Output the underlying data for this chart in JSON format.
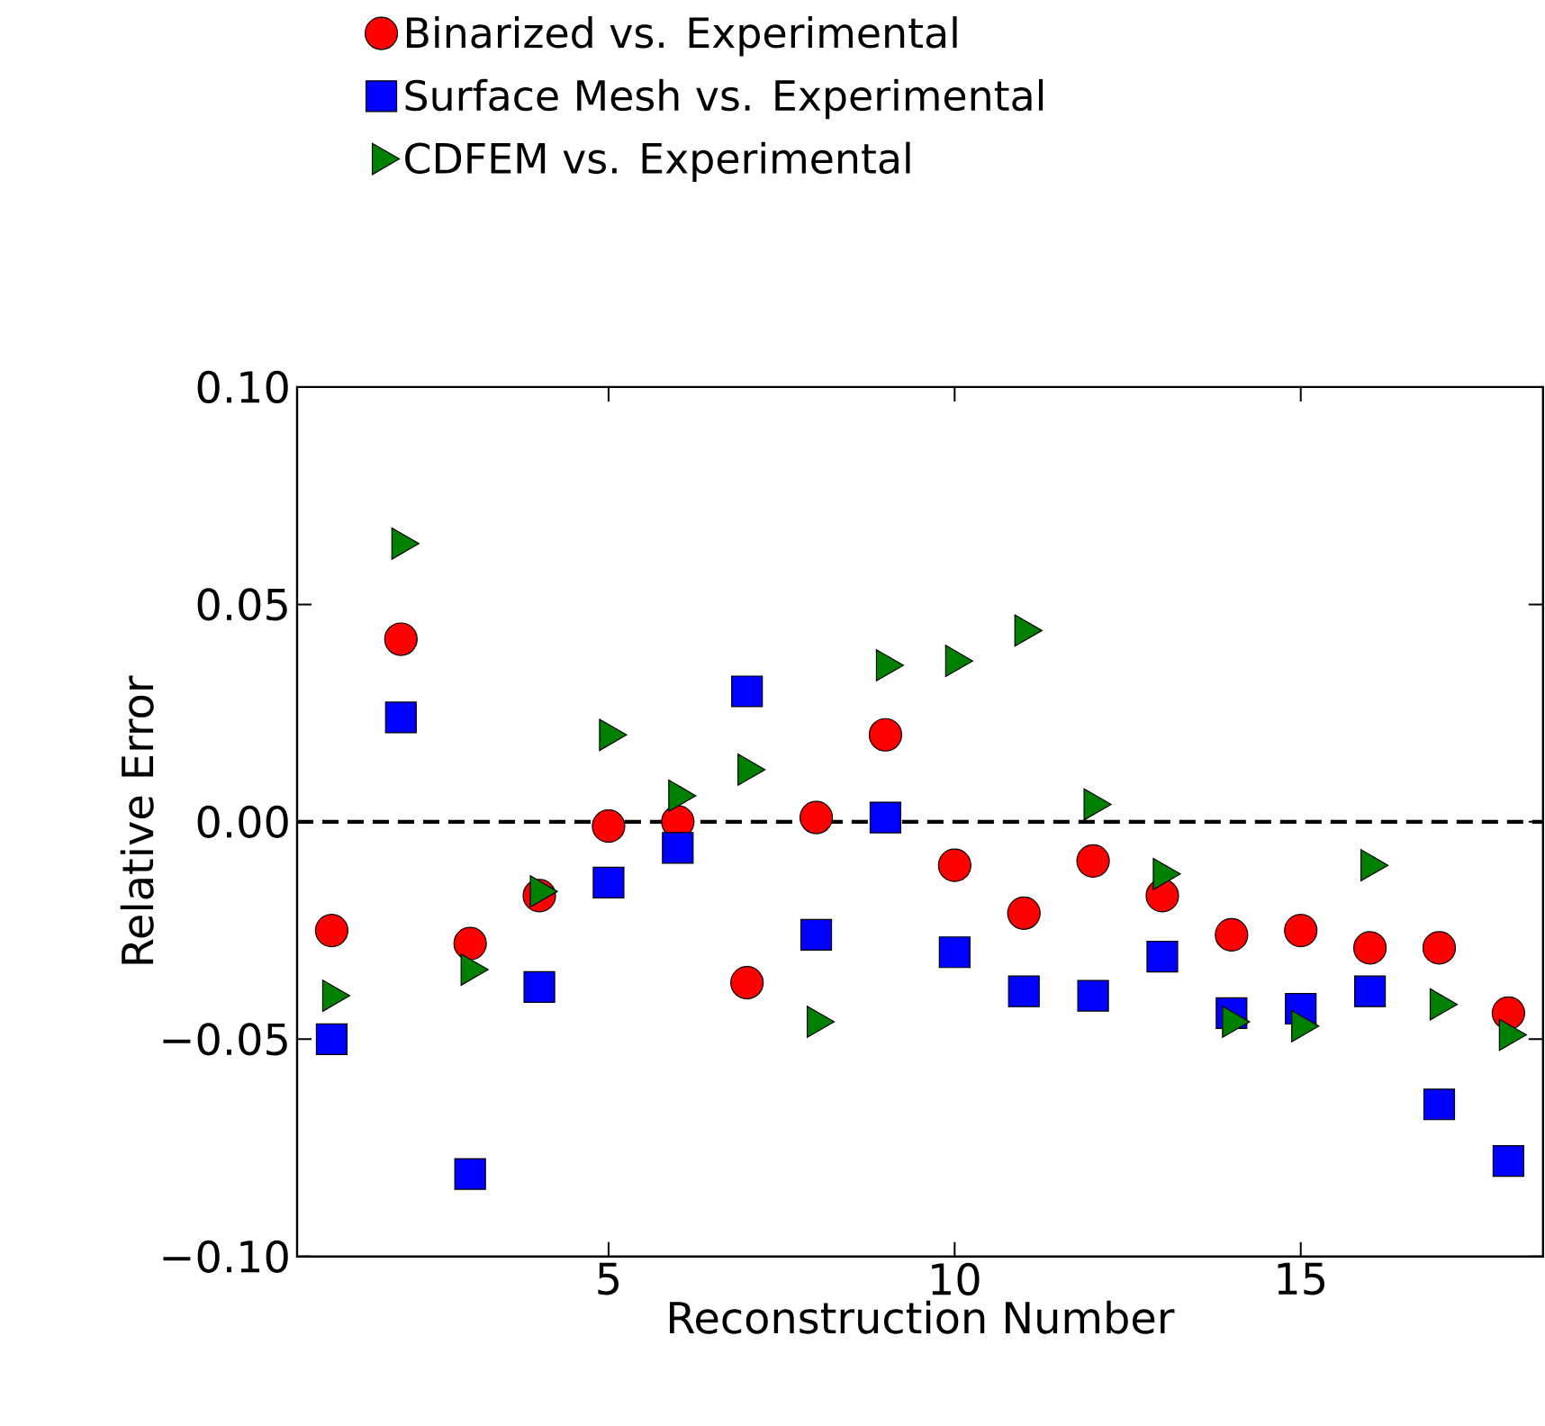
{
  "chart_data": {
    "type": "scatter",
    "xlabel": "Reconstruction Number",
    "ylabel": "Relative Error",
    "x": [
      1,
      2,
      3,
      4,
      5,
      6,
      7,
      8,
      9,
      10,
      11,
      12,
      13,
      14,
      15,
      16,
      17,
      18
    ],
    "series": [
      {
        "name": "Binarized vs. Experimental",
        "color": "#ff0000",
        "marker": "circle",
        "values": [
          -0.025,
          0.042,
          -0.028,
          -0.017,
          -0.001,
          0.0,
          -0.037,
          0.001,
          0.02,
          -0.01,
          -0.021,
          -0.009,
          -0.017,
          -0.026,
          -0.025,
          -0.029,
          -0.029,
          -0.044
        ]
      },
      {
        "name": "Surface Mesh vs. Experimental",
        "color": "#0000ff",
        "marker": "square",
        "values": [
          -0.05,
          0.024,
          -0.081,
          -0.038,
          -0.014,
          -0.006,
          0.03,
          -0.026,
          0.001,
          -0.03,
          -0.039,
          -0.04,
          -0.031,
          -0.044,
          -0.043,
          -0.039,
          -0.065,
          -0.078
        ]
      },
      {
        "name": "CDFEM vs. Experimental",
        "color": "#008000",
        "marker": "triangle",
        "values": [
          -0.04,
          0.064,
          -0.034,
          -0.016,
          0.02,
          0.006,
          0.012,
          -0.046,
          0.036,
          0.037,
          0.044,
          0.004,
          -0.012,
          -0.046,
          -0.047,
          -0.01,
          -0.042,
          -0.049
        ]
      }
    ],
    "xlim": [
      0.5,
      18.5
    ],
    "ylim": [
      -0.1,
      0.1
    ],
    "xticks": [
      5,
      10,
      15
    ],
    "yticks": [
      {
        "value": -0.1,
        "label": "−0.10"
      },
      {
        "value": -0.05,
        "label": "−0.05"
      },
      {
        "value": 0,
        "label": "0.00"
      },
      {
        "value": 0.05,
        "label": "0.05"
      },
      {
        "value": 0.1,
        "label": "0.10"
      }
    ],
    "ref_lines": [
      {
        "axis": "y",
        "value": 0,
        "color": "#000000",
        "line_style": "dashed"
      }
    ],
    "grid": false,
    "legend": "top"
  }
}
